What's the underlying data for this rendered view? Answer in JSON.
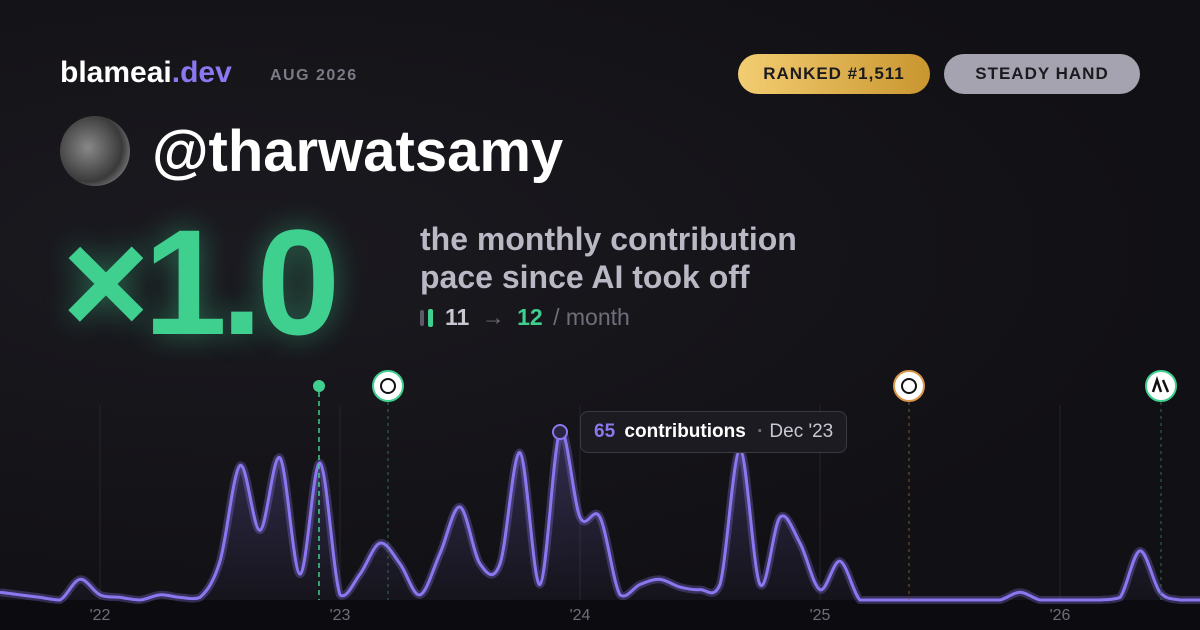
{
  "header": {
    "brand": "blameai",
    "brand_tld": ".dev",
    "period": "AUG 2026",
    "rank_badge": "RANKED #1,511",
    "style_badge": "STEADY HAND"
  },
  "user": {
    "handle": "@tharwatsamy"
  },
  "headline": {
    "multiplier": "×1.0",
    "description_line1": "the monthly contribution",
    "description_line2": "pace since AI took off",
    "pace_before": "11",
    "pace_arrow": "→",
    "pace_after": "12",
    "pace_unit": "/ month"
  },
  "tooltip": {
    "label": "contributions",
    "separator": "·",
    "date": "Dec '23"
  },
  "chart_data": {
    "type": "area",
    "color": "#8b78f0",
    "values": [
      3,
      2,
      1,
      0,
      8,
      2,
      1,
      0,
      2,
      1,
      1,
      15,
      52,
      27,
      55,
      10,
      53,
      2,
      10,
      22,
      14,
      2,
      18,
      36,
      14,
      14,
      57,
      6,
      65,
      32,
      32,
      2,
      6,
      8,
      5,
      4,
      6,
      58,
      6,
      32,
      22,
      4,
      15,
      0,
      0,
      0,
      0,
      0,
      0,
      0,
      0,
      3,
      0,
      0,
      0,
      0,
      1,
      19,
      3,
      0,
      0
    ],
    "xlim": [
      0,
      60
    ],
    "xticks": [
      {
        "value": 5,
        "label": "'22"
      },
      {
        "value": 17,
        "label": "'23"
      },
      {
        "value": 29,
        "label": "'24"
      },
      {
        "value": 41,
        "label": "'25"
      },
      {
        "value": 53,
        "label": "'26"
      }
    ],
    "grid": true
  }
}
